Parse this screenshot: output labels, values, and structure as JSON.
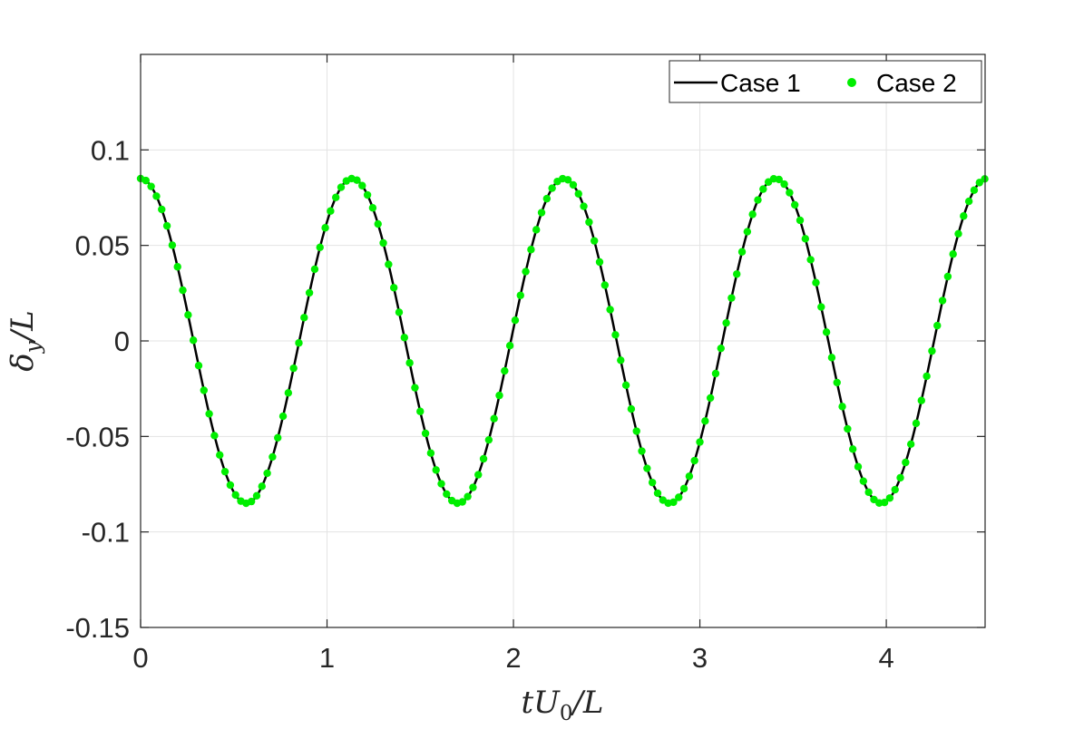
{
  "chart_data": {
    "type": "line",
    "xlabel": "tU0/L",
    "xlabel_main": "tU",
    "xlabel_sub": "0",
    "xlabel_tail": "/L",
    "ylabel": "δy/L",
    "ylabel_main": "δ",
    "ylabel_sub": "y",
    "ylabel_tail": "/L",
    "xlim": [
      0,
      4.53
    ],
    "ylim": [
      -0.15,
      0.15
    ],
    "xticks": [
      0,
      1,
      2,
      3,
      4
    ],
    "xtick_labels": [
      "0",
      "1",
      "2",
      "3",
      "4"
    ],
    "yticks": [
      -0.15,
      -0.1,
      -0.05,
      0,
      0.05,
      0.1
    ],
    "ytick_labels": [
      "-0.15",
      "-0.1",
      "-0.05",
      "0",
      "0.05",
      "0.1"
    ],
    "grid": true,
    "legend_position": "top-right",
    "signal": {
      "amplitude": 0.085,
      "period": 1.135,
      "t_start": 0,
      "t_end": 4.53,
      "marker_spacing": 0.0283
    },
    "series": [
      {
        "name": "Case 1",
        "style": "line",
        "color": "#000000"
      },
      {
        "name": "Case 2",
        "style": "markers",
        "color": "#00ee00"
      }
    ]
  }
}
